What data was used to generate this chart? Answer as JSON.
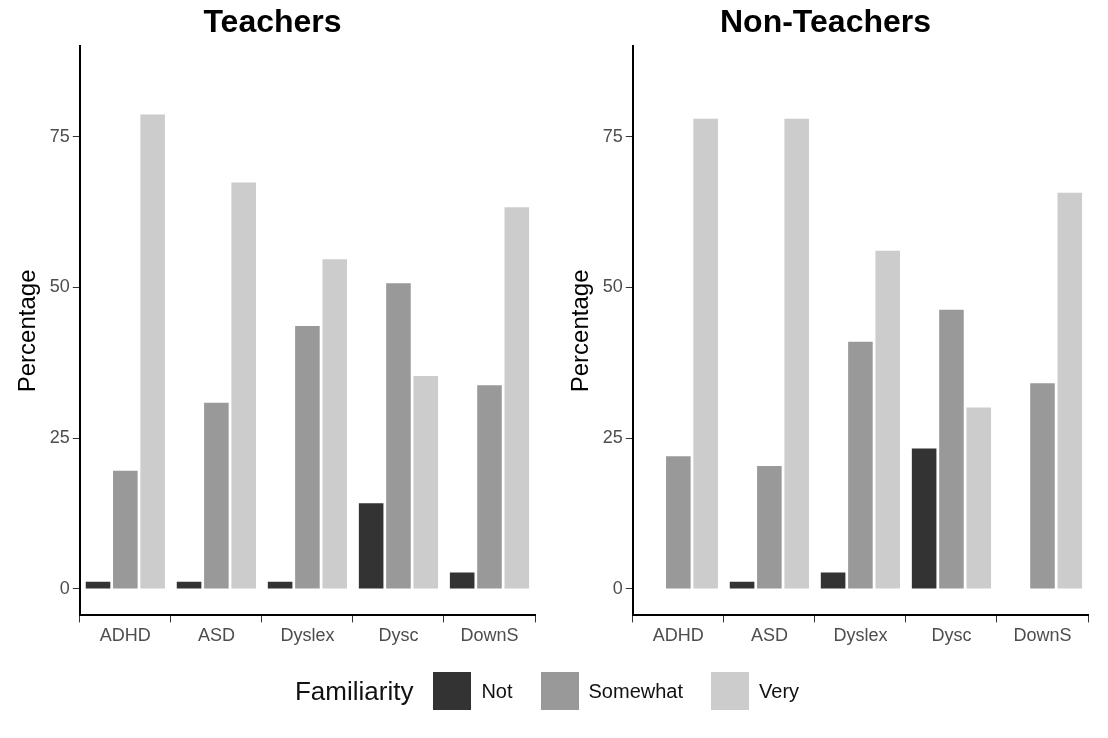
{
  "chart_data": [
    {
      "type": "bar",
      "title": "Teachers",
      "ylabel": "Percentage",
      "categories": [
        "ADHD",
        "ASD",
        "Dyslex",
        "Dysc",
        "DownS"
      ],
      "ylim": [
        -4.4,
        90
      ],
      "yticks": [
        0,
        25,
        50,
        75
      ],
      "legend": "bottom",
      "legend_title": "Familiarity",
      "series": [
        {
          "name": "Not",
          "color": "#333333",
          "values": [
            1.2,
            1.2,
            1.2,
            14.2,
            2.7
          ]
        },
        {
          "name": "Somewhat",
          "color": "#999999",
          "values": [
            19.6,
            30.9,
            43.6,
            50.7,
            33.8
          ]
        },
        {
          "name": "Very",
          "color": "#cccccc",
          "values": [
            78.7,
            67.4,
            54.7,
            35.3,
            63.3
          ]
        }
      ]
    },
    {
      "type": "bar",
      "title": "Non-Teachers",
      "ylabel": "Percentage",
      "categories": [
        "ADHD",
        "ASD",
        "Dyslex",
        "Dysc",
        "DownS"
      ],
      "ylim": [
        -4.4,
        90
      ],
      "yticks": [
        0,
        25,
        50,
        75
      ],
      "series": [
        {
          "color": "#333333",
          "values": [
            0,
            1.2,
            2.7,
            23.3,
            0
          ]
        },
        {
          "color": "#999999",
          "values": [
            22.0,
            20.4,
            41.0,
            46.3,
            34.1
          ]
        },
        {
          "color": "#cccccc",
          "values": [
            78.0,
            78.0,
            56.1,
            30.1,
            65.7
          ]
        }
      ]
    }
  ]
}
